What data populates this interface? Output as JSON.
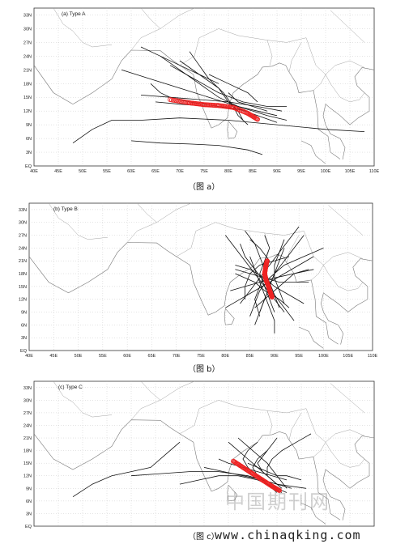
{
  "panels": [
    {
      "id": "a",
      "label": "(a) Type A",
      "caption": "（图 a）",
      "y_ticks": [
        "EQ",
        "3N",
        "6N",
        "9N",
        "12N",
        "15N",
        "18N",
        "21N",
        "24N",
        "27N",
        "30N",
        "33N"
      ],
      "x_ticks": [
        "40E",
        "45E",
        "50E",
        "55E",
        "60E",
        "65E",
        "70E",
        "75E",
        "80E",
        "85E",
        "90E",
        "95E",
        "100E",
        "105E",
        "110E"
      ],
      "mean_track": [
        [
          68,
          14.5
        ],
        [
          72,
          13.8
        ],
        [
          75,
          13.4
        ],
        [
          78,
          13.2
        ],
        [
          81,
          12.8
        ],
        [
          84,
          11.5
        ],
        [
          86,
          10.2
        ]
      ],
      "tracks": [
        [
          [
            68,
            22
          ],
          [
            73,
            19
          ],
          [
            78,
            16
          ],
          [
            83,
            14
          ],
          [
            88,
            13
          ],
          [
            92,
            13
          ]
        ],
        [
          [
            66,
            24
          ],
          [
            70,
            21
          ],
          [
            74,
            18
          ],
          [
            78,
            15
          ],
          [
            82,
            13
          ],
          [
            86,
            12
          ],
          [
            90,
            11
          ]
        ],
        [
          [
            58,
            21
          ],
          [
            64,
            19
          ],
          [
            70,
            17
          ],
          [
            76,
            15
          ],
          [
            82,
            13
          ],
          [
            88,
            11
          ],
          [
            92,
            10
          ]
        ],
        [
          [
            48,
            5
          ],
          [
            52,
            8
          ],
          [
            56,
            10
          ],
          [
            62,
            10
          ],
          [
            70,
            10.5
          ],
          [
            80,
            10
          ],
          [
            90,
            9
          ],
          [
            100,
            8
          ],
          [
            108,
            7.5
          ]
        ],
        [
          [
            60,
            5.5
          ],
          [
            66,
            5
          ],
          [
            72,
            4.8
          ],
          [
            78,
            4.5
          ],
          [
            84,
            3.5
          ],
          [
            87,
            2.5
          ]
        ],
        [
          [
            65,
            14
          ],
          [
            70,
            13.5
          ],
          [
            76,
            13
          ],
          [
            82,
            12.5
          ],
          [
            86,
            11
          ],
          [
            90,
            9.5
          ]
        ],
        [
          [
            62,
            15.5
          ],
          [
            68,
            15
          ],
          [
            74,
            14.5
          ],
          [
            80,
            14
          ],
          [
            86,
            13
          ],
          [
            91,
            12
          ]
        ],
        [
          [
            70,
            23
          ],
          [
            74,
            20
          ],
          [
            78,
            17
          ],
          [
            80,
            14
          ],
          [
            82,
            12
          ],
          [
            83,
            10
          ]
        ],
        [
          [
            64,
            18
          ],
          [
            66,
            16
          ],
          [
            68,
            15
          ],
          [
            72,
            14
          ],
          [
            78,
            13
          ],
          [
            84,
            12
          ]
        ],
        [
          [
            72,
            25
          ],
          [
            74,
            22
          ],
          [
            76,
            19
          ],
          [
            79,
            16
          ],
          [
            81,
            13
          ],
          [
            82,
            11
          ],
          [
            84,
            9
          ]
        ],
        [
          [
            80,
            16
          ],
          [
            82,
            14
          ],
          [
            85,
            13
          ],
          [
            88,
            12
          ]
        ],
        [
          [
            62,
            26
          ],
          [
            66,
            24
          ],
          [
            70,
            22
          ],
          [
            74,
            20
          ],
          [
            78,
            18
          ]
        ],
        [
          [
            76,
            20
          ],
          [
            80,
            18
          ],
          [
            84,
            16
          ],
          [
            86,
            14
          ]
        ]
      ]
    },
    {
      "id": "b",
      "label": "(b) Type B",
      "caption": "（图 b）",
      "y_ticks": [
        "EQ",
        "3N",
        "6N",
        "9N",
        "12N",
        "15N",
        "18N",
        "21N",
        "24N",
        "27N",
        "30N",
        "33N"
      ],
      "x_ticks": [
        "40E",
        "45E",
        "50E",
        "55E",
        "60E",
        "65E",
        "70E",
        "75E",
        "80E",
        "85E",
        "90E",
        "95E",
        "100E",
        "105E",
        "110E"
      ],
      "mean_track": [
        [
          88.5,
          21
        ],
        [
          88.2,
          19.5
        ],
        [
          88,
          18
        ],
        [
          88.3,
          16.5
        ],
        [
          88.8,
          15
        ],
        [
          89.2,
          13.5
        ],
        [
          89.5,
          12.5
        ]
      ],
      "tracks": [
        [
          [
            80,
            27
          ],
          [
            82,
            24
          ],
          [
            84,
            21
          ],
          [
            86,
            18
          ],
          [
            88,
            15
          ],
          [
            90,
            12
          ],
          [
            92,
            9
          ]
        ],
        [
          [
            84,
            28
          ],
          [
            86,
            25
          ],
          [
            87,
            22
          ],
          [
            88,
            19
          ],
          [
            89,
            16
          ],
          [
            90,
            13
          ],
          [
            91,
            10
          ]
        ],
        [
          [
            96,
            27
          ],
          [
            94,
            24
          ],
          [
            92,
            21
          ],
          [
            90,
            18
          ],
          [
            89,
            15
          ],
          [
            88,
            12
          ],
          [
            87,
            9
          ]
        ],
        [
          [
            100,
            24
          ],
          [
            96,
            22
          ],
          [
            92,
            20
          ],
          [
            89,
            17
          ],
          [
            87,
            14
          ],
          [
            86,
            11
          ],
          [
            85,
            8
          ]
        ],
        [
          [
            82,
            20
          ],
          [
            85,
            19
          ],
          [
            88,
            17
          ],
          [
            90,
            15
          ],
          [
            93,
            13
          ],
          [
            96,
            11
          ]
        ],
        [
          [
            81,
            14
          ],
          [
            84,
            15
          ],
          [
            87,
            16
          ],
          [
            90,
            17
          ],
          [
            94,
            18
          ],
          [
            98,
            19
          ]
        ],
        [
          [
            86,
            6
          ],
          [
            87,
            9
          ],
          [
            88,
            12
          ],
          [
            89,
            15
          ],
          [
            90,
            18
          ],
          [
            91,
            21
          ],
          [
            92,
            24
          ]
        ],
        [
          [
            90,
            4
          ],
          [
            90,
            7
          ],
          [
            89,
            10
          ],
          [
            88,
            13
          ],
          [
            87,
            16
          ],
          [
            86,
            19
          ],
          [
            85,
            22
          ]
        ],
        [
          [
            83,
            25
          ],
          [
            84,
            22
          ],
          [
            86,
            19
          ],
          [
            88,
            16
          ],
          [
            90,
            13
          ],
          [
            92,
            10
          ],
          [
            94,
            7
          ]
        ],
        [
          [
            95,
            29
          ],
          [
            93,
            26
          ],
          [
            91,
            23
          ],
          [
            89,
            20
          ],
          [
            87,
            17
          ],
          [
            85,
            14
          ],
          [
            83,
            11
          ]
        ],
        [
          [
            80,
            10
          ],
          [
            83,
            12
          ],
          [
            86,
            14
          ],
          [
            89,
            16
          ],
          [
            92,
            18
          ],
          [
            95,
            20
          ],
          [
            98,
            22
          ]
        ],
        [
          [
            85,
            26
          ],
          [
            87,
            24
          ],
          [
            89,
            21
          ],
          [
            88,
            18
          ],
          [
            87,
            15
          ],
          [
            86,
            12
          ],
          [
            87,
            8
          ]
        ],
        [
          [
            92,
            26
          ],
          [
            91,
            23
          ],
          [
            90,
            20
          ],
          [
            90,
            17
          ],
          [
            91,
            14
          ],
          [
            92,
            11
          ]
        ],
        [
          [
            82,
            18
          ],
          [
            84,
            17
          ],
          [
            86,
            16
          ],
          [
            88,
            14
          ],
          [
            91,
            12
          ],
          [
            93,
            10
          ]
        ],
        [
          [
            97,
            16
          ],
          [
            94,
            16
          ],
          [
            91,
            16
          ],
          [
            88,
            17
          ],
          [
            85,
            18
          ],
          [
            82,
            19
          ]
        ],
        [
          [
            88,
            27
          ],
          [
            89,
            24
          ],
          [
            88,
            21
          ],
          [
            87,
            18
          ],
          [
            88,
            15
          ],
          [
            89,
            12
          ],
          [
            90,
            9
          ]
        ],
        [
          [
            93,
            22
          ],
          [
            90,
            21
          ],
          [
            87,
            20
          ],
          [
            85,
            18
          ],
          [
            84,
            15
          ],
          [
            84,
            12
          ]
        ],
        [
          [
            86,
            10
          ],
          [
            88,
            12
          ],
          [
            90,
            14
          ],
          [
            92,
            16
          ],
          [
            94,
            18
          ],
          [
            97,
            19
          ]
        ]
      ]
    },
    {
      "id": "c",
      "label": "(c) Type C",
      "caption": "（图 c）",
      "y_ticks": [
        "EQ",
        "3N",
        "6N",
        "9N",
        "12N",
        "15N",
        "18N",
        "21N",
        "24N",
        "27N",
        "30N",
        "33N"
      ],
      "x_ticks": [],
      "mean_track": [
        [
          81,
          15.5
        ],
        [
          83,
          14
        ],
        [
          85,
          12.5
        ],
        [
          87,
          11
        ],
        [
          89,
          9.5
        ],
        [
          90.5,
          8.5
        ]
      ],
      "tracks": [
        [
          [
            48,
            7
          ],
          [
            52,
            10
          ],
          [
            56,
            12
          ],
          [
            60,
            13
          ],
          [
            64,
            14
          ],
          [
            68,
            18
          ],
          [
            70,
            20
          ]
        ],
        [
          [
            60,
            12
          ],
          [
            66,
            12.5
          ],
          [
            72,
            13
          ],
          [
            78,
            13
          ],
          [
            84,
            12
          ],
          [
            90,
            10
          ],
          [
            96,
            9
          ]
        ],
        [
          [
            70,
            10
          ],
          [
            74,
            11
          ],
          [
            78,
            12
          ],
          [
            82,
            12
          ],
          [
            86,
            11
          ],
          [
            90,
            9
          ],
          [
            92,
            8
          ]
        ],
        [
          [
            80,
            20
          ],
          [
            82,
            18
          ],
          [
            84,
            16
          ],
          [
            86,
            14
          ],
          [
            88,
            12
          ],
          [
            90,
            10
          ]
        ],
        [
          [
            86,
            20
          ],
          [
            84,
            18
          ],
          [
            83,
            16
          ],
          [
            84,
            14
          ],
          [
            86,
            12
          ],
          [
            88,
            10
          ],
          [
            91,
            8
          ]
        ],
        [
          [
            78,
            16
          ],
          [
            80,
            15
          ],
          [
            83,
            14
          ],
          [
            86,
            13
          ],
          [
            89,
            12
          ],
          [
            92,
            11
          ]
        ],
        [
          [
            88,
            18
          ],
          [
            86,
            16
          ],
          [
            85,
            14
          ],
          [
            86,
            12
          ],
          [
            88,
            10
          ],
          [
            90,
            8
          ]
        ],
        [
          [
            82,
            21
          ],
          [
            84,
            19
          ],
          [
            86,
            17
          ],
          [
            88,
            15
          ],
          [
            90,
            12
          ],
          [
            92,
            9
          ]
        ],
        [
          [
            90,
            21
          ],
          [
            88,
            18
          ],
          [
            86,
            15
          ],
          [
            87,
            13
          ],
          [
            89,
            11
          ],
          [
            91,
            9
          ]
        ],
        [
          [
            75,
            14
          ],
          [
            79,
            13
          ],
          [
            83,
            12
          ],
          [
            87,
            11
          ],
          [
            90,
            10
          ],
          [
            93,
            9
          ]
        ],
        [
          [
            84,
            15
          ],
          [
            86,
            14
          ],
          [
            88,
            13
          ],
          [
            90,
            12
          ],
          [
            92,
            12
          ],
          [
            95,
            11
          ]
        ],
        [
          [
            97,
            22
          ],
          [
            94,
            20
          ],
          [
            91,
            18
          ],
          [
            89,
            16
          ],
          [
            88,
            14
          ],
          [
            88,
            12
          ]
        ]
      ]
    }
  ],
  "watermark": "www.chinaqking.com",
  "watermark_cn": "中国期刊网"
}
